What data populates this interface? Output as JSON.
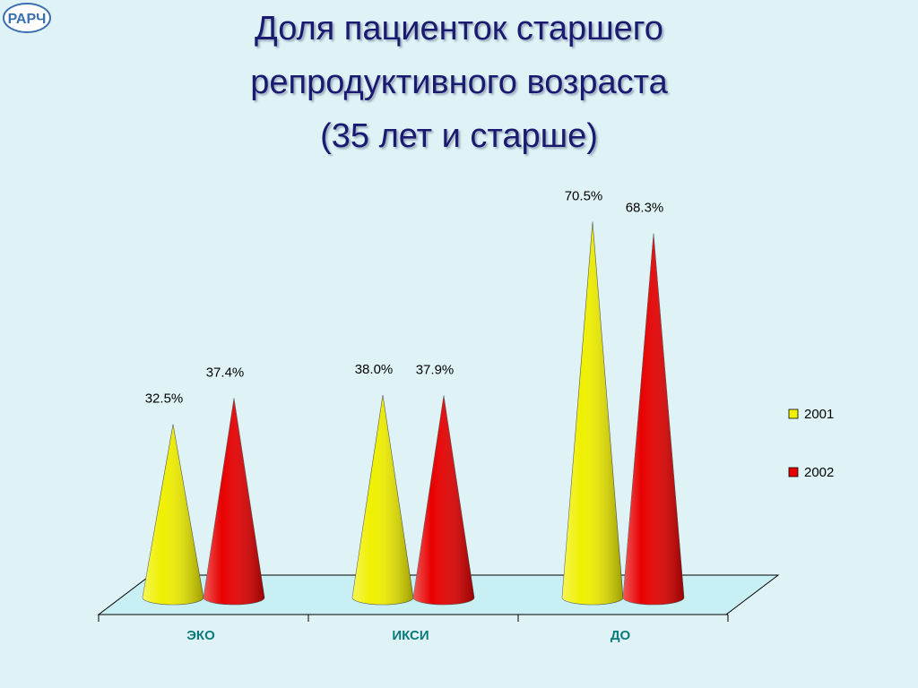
{
  "logo": "РАРЧ",
  "chart_data": {
    "type": "cone",
    "title": "Доля пациенток старшего\nрепродуктивного возраста\n(35 лет и старше)",
    "categories": [
      "ЭКО",
      "ИКСИ",
      "ДО"
    ],
    "series": [
      {
        "name": "2001",
        "color": "#f0f000",
        "values": [
          32.5,
          38.0,
          70.5
        ],
        "value_labels": [
          "32.5%",
          "38.0%",
          "70.5%"
        ]
      },
      {
        "name": "2002",
        "color": "#e80000",
        "values": [
          37.4,
          37.9,
          68.3
        ],
        "value_labels": [
          "37.4%",
          "37.9%",
          "68.3%"
        ]
      }
    ],
    "legend": "right"
  }
}
